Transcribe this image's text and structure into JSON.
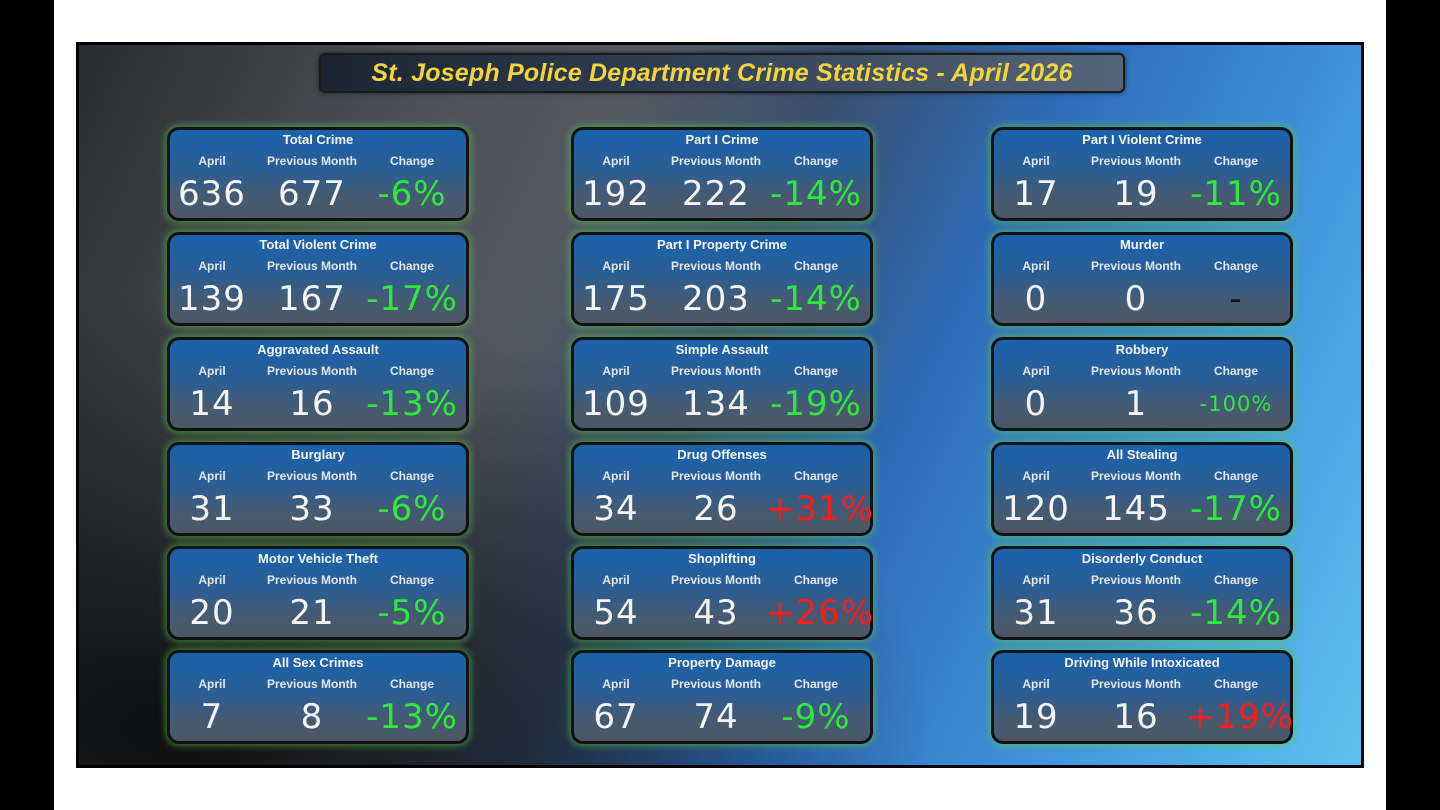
{
  "title": "St. Joseph Police Department Crime Statistics - April 2026",
  "labels": {
    "current": "April",
    "previous": "Previous Month",
    "change": "Change"
  },
  "colors": {
    "decrease": "#2ee83b",
    "increase": "#ff1a1a",
    "none": "#141414",
    "title": "#f2d43c"
  },
  "cards": [
    {
      "name": "Total Crime",
      "april": "636",
      "previous": "677",
      "change": "-6%",
      "dir": "down"
    },
    {
      "name": "Total Violent Crime",
      "april": "139",
      "previous": "167",
      "change": "-17%",
      "dir": "down"
    },
    {
      "name": "Aggravated Assault",
      "april": "14",
      "previous": "16",
      "change": "-13%",
      "dir": "down"
    },
    {
      "name": "Burglary",
      "april": "31",
      "previous": "33",
      "change": "-6%",
      "dir": "down"
    },
    {
      "name": "Motor Vehicle Theft",
      "april": "20",
      "previous": "21",
      "change": "-5%",
      "dir": "down"
    },
    {
      "name": "All Sex Crimes",
      "april": "7",
      "previous": "8",
      "change": "-13%",
      "dir": "down"
    },
    {
      "name": "Part I Crime",
      "april": "192",
      "previous": "222",
      "change": "-14%",
      "dir": "down"
    },
    {
      "name": "Part I Property Crime",
      "april": "175",
      "previous": "203",
      "change": "-14%",
      "dir": "down"
    },
    {
      "name": "Simple Assault",
      "april": "109",
      "previous": "134",
      "change": "-19%",
      "dir": "down"
    },
    {
      "name": "Drug Offenses",
      "april": "34",
      "previous": "26",
      "change": "+31%",
      "dir": "up"
    },
    {
      "name": "Shoplifting",
      "april": "54",
      "previous": "43",
      "change": "+26%",
      "dir": "up"
    },
    {
      "name": "Property Damage",
      "april": "67",
      "previous": "74",
      "change": "-9%",
      "dir": "down"
    },
    {
      "name": "Part I Violent Crime",
      "april": "17",
      "previous": "19",
      "change": "-11%",
      "dir": "down"
    },
    {
      "name": "Murder",
      "april": "0",
      "previous": "0",
      "change": "-",
      "dir": "none"
    },
    {
      "name": "Robbery",
      "april": "0",
      "previous": "1",
      "change": "-100%",
      "dir": "down"
    },
    {
      "name": "All Stealing",
      "april": "120",
      "previous": "145",
      "change": "-17%",
      "dir": "down"
    },
    {
      "name": "Disorderly Conduct",
      "april": "31",
      "previous": "36",
      "change": "-14%",
      "dir": "down"
    },
    {
      "name": "Driving While Intoxicated",
      "april": "19",
      "previous": "16",
      "change": "+19%",
      "dir": "up"
    }
  ]
}
